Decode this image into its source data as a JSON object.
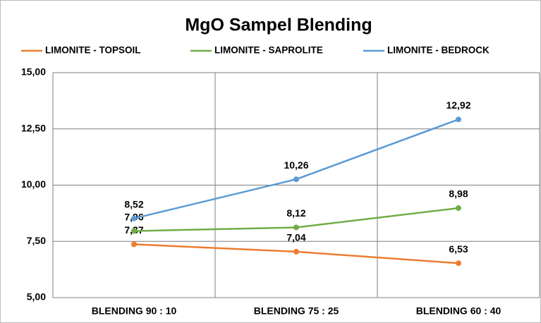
{
  "chart_data": {
    "type": "line",
    "title": "MgO Sampel Blending",
    "categories": [
      "BLENDING 90 : 10",
      "BLENDING 75 : 25",
      "BLENDING 60 : 40"
    ],
    "series": [
      {
        "name": "LIMONITE - TOPSOIL",
        "color": "#ed7d31",
        "values": [
          7.37,
          7.04,
          6.53
        ],
        "value_labels": [
          "7,37",
          "7,04",
          "6,53"
        ]
      },
      {
        "name": "LIMONITE - SAPROLITE",
        "color": "#70ad47",
        "values": [
          7.96,
          8.12,
          8.98
        ],
        "value_labels": [
          "7,96",
          "8,12",
          "8,98"
        ]
      },
      {
        "name": "LIMONITE - BEDROCK",
        "color": "#5b9bd5",
        "values": [
          8.52,
          10.26,
          12.92
        ],
        "value_labels": [
          "8,52",
          "10,26",
          "12,92"
        ]
      }
    ],
    "ylim": [
      5,
      15
    ],
    "yticks": [
      {
        "value": 5,
        "label": "5,00"
      },
      {
        "value": 7.5,
        "label": "7,50"
      },
      {
        "value": 10,
        "label": "10,00"
      },
      {
        "value": 12.5,
        "label": "12,50"
      },
      {
        "value": 15,
        "label": "15,00"
      }
    ],
    "grid": true,
    "legend": "top"
  }
}
